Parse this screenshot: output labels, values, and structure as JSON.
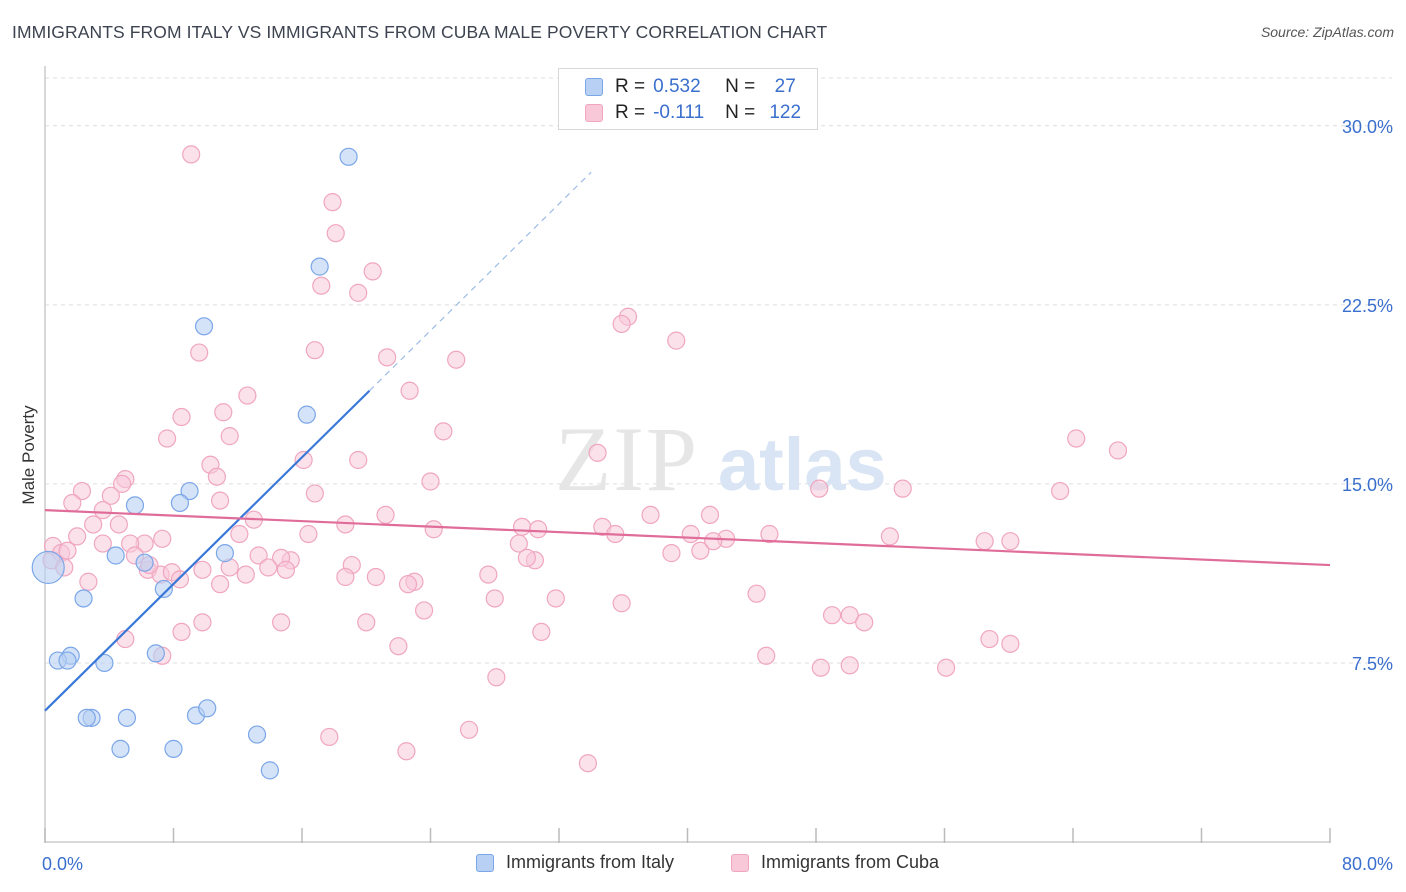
{
  "title": "IMMIGRANTS FROM ITALY VS IMMIGRANTS FROM CUBA MALE POVERTY CORRELATION CHART",
  "source": "Source: ZipAtlas.com",
  "watermark": {
    "zip": "ZIP",
    "atlas": "atlas"
  },
  "stats": [
    {
      "r_label": "R =",
      "r_value": "0.532",
      "n_label": "N =",
      "n_value": "27",
      "color": "#7ba6e8",
      "fill": "#b8d0f4"
    },
    {
      "r_label": "R =",
      "r_value": "-0.111",
      "n_label": "N =",
      "n_value": "122",
      "color": "#f0a6c0",
      "fill": "#f8c8d8"
    }
  ],
  "legend": [
    {
      "label": "Immigrants from Italy",
      "color": "#7ba6e8",
      "fill": "#b8d0f4"
    },
    {
      "label": "Immigrants from Cuba",
      "color": "#f0a6c0",
      "fill": "#f8c8d8"
    }
  ],
  "chart_data": {
    "type": "scatter",
    "title": "IMMIGRANTS FROM ITALY VS IMMIGRANTS FROM CUBA MALE POVERTY CORRELATION CHART",
    "xlabel": "",
    "ylabel": "Male Poverty",
    "xlim": [
      0,
      80
    ],
    "ylim": [
      0,
      32
    ],
    "x_tick_labels": [
      "0.0%",
      "80.0%"
    ],
    "y_ticks": [
      7.5,
      15.0,
      22.5,
      30.0
    ],
    "y_tick_labels": [
      "7.5%",
      "15.0%",
      "22.5%",
      "30.0%"
    ],
    "series": [
      {
        "name": "Immigrants from Italy",
        "color": "#3a78d8",
        "fill": "#b8d0f4",
        "stroke": "#7ba6e8",
        "trendline": {
          "x0": 0,
          "y0": 5.5,
          "x1": 20.2,
          "y1": 18.9,
          "dash_x1": 34.0
        },
        "points": [
          [
            0.2,
            11.5
          ],
          [
            18.9,
            28.7
          ],
          [
            17.1,
            24.1
          ],
          [
            9.9,
            21.6
          ],
          [
            16.3,
            17.9
          ],
          [
            9.0,
            14.7
          ],
          [
            8.4,
            14.2
          ],
          [
            5.6,
            14.1
          ],
          [
            11.2,
            12.1
          ],
          [
            4.4,
            12.0
          ],
          [
            6.2,
            11.7
          ],
          [
            7.4,
            10.6
          ],
          [
            2.4,
            10.2
          ],
          [
            1.6,
            7.8
          ],
          [
            0.8,
            7.6
          ],
          [
            1.4,
            7.6
          ],
          [
            3.7,
            7.5
          ],
          [
            6.9,
            7.9
          ],
          [
            2.9,
            5.2
          ],
          [
            5.1,
            5.2
          ],
          [
            9.4,
            5.3
          ],
          [
            10.1,
            5.6
          ],
          [
            13.2,
            4.5
          ],
          [
            4.7,
            3.9
          ],
          [
            8.0,
            3.9
          ],
          [
            14.0,
            3.0
          ],
          [
            2.6,
            5.2
          ]
        ]
      },
      {
        "name": "Immigrants from Cuba",
        "color": "#e06c9a",
        "fill": "#f8c8d8",
        "stroke": "#f0a6c0",
        "trendline": {
          "x0": 0,
          "y0": 13.9,
          "x1": 80,
          "y1": 11.6
        },
        "points": [
          [
            9.1,
            28.8
          ],
          [
            17.9,
            26.8
          ],
          [
            18.1,
            25.5
          ],
          [
            20.4,
            23.9
          ],
          [
            17.2,
            23.3
          ],
          [
            19.5,
            23.0
          ],
          [
            36.3,
            22.0
          ],
          [
            35.9,
            21.7
          ],
          [
            39.3,
            21.0
          ],
          [
            9.6,
            20.5
          ],
          [
            16.8,
            20.6
          ],
          [
            21.3,
            20.3
          ],
          [
            25.6,
            20.2
          ],
          [
            22.7,
            18.9
          ],
          [
            12.6,
            18.7
          ],
          [
            8.5,
            17.8
          ],
          [
            11.1,
            18.0
          ],
          [
            24.8,
            17.2
          ],
          [
            7.6,
            16.9
          ],
          [
            11.5,
            17.0
          ],
          [
            64.2,
            16.9
          ],
          [
            66.8,
            16.4
          ],
          [
            34.4,
            16.3
          ],
          [
            16.1,
            16.0
          ],
          [
            19.5,
            16.0
          ],
          [
            10.3,
            15.8
          ],
          [
            10.7,
            15.3
          ],
          [
            5.0,
            15.2
          ],
          [
            4.8,
            15.0
          ],
          [
            24.0,
            15.1
          ],
          [
            63.2,
            14.7
          ],
          [
            48.2,
            14.8
          ],
          [
            2.3,
            14.7
          ],
          [
            4.1,
            14.5
          ],
          [
            1.7,
            14.2
          ],
          [
            10.9,
            14.3
          ],
          [
            16.8,
            14.6
          ],
          [
            53.4,
            14.8
          ],
          [
            3.6,
            13.9
          ],
          [
            37.7,
            13.7
          ],
          [
            41.4,
            13.7
          ],
          [
            21.2,
            13.7
          ],
          [
            4.6,
            13.3
          ],
          [
            13.0,
            13.5
          ],
          [
            18.7,
            13.3
          ],
          [
            29.7,
            13.2
          ],
          [
            30.7,
            13.1
          ],
          [
            34.7,
            13.2
          ],
          [
            35.5,
            12.9
          ],
          [
            24.2,
            13.1
          ],
          [
            0.5,
            12.4
          ],
          [
            1.0,
            12.1
          ],
          [
            2.0,
            12.8
          ],
          [
            3.0,
            13.3
          ],
          [
            3.6,
            12.5
          ],
          [
            7.3,
            12.7
          ],
          [
            6.2,
            12.5
          ],
          [
            5.3,
            12.5
          ],
          [
            12.1,
            12.9
          ],
          [
            16.4,
            12.9
          ],
          [
            40.2,
            12.9
          ],
          [
            42.4,
            12.7
          ],
          [
            45.1,
            12.9
          ],
          [
            52.6,
            12.8
          ],
          [
            58.5,
            12.6
          ],
          [
            60.1,
            12.6
          ],
          [
            1.4,
            12.2
          ],
          [
            5.6,
            12.0
          ],
          [
            13.3,
            12.0
          ],
          [
            15.3,
            11.8
          ],
          [
            14.7,
            11.9
          ],
          [
            29.5,
            12.5
          ],
          [
            30.5,
            11.8
          ],
          [
            30.0,
            11.9
          ],
          [
            39.0,
            12.1
          ],
          [
            40.8,
            12.2
          ],
          [
            41.6,
            12.6
          ],
          [
            0.4,
            11.8
          ],
          [
            1.2,
            11.5
          ],
          [
            6.4,
            11.4
          ],
          [
            7.2,
            11.2
          ],
          [
            7.9,
            11.3
          ],
          [
            9.8,
            11.4
          ],
          [
            11.5,
            11.5
          ],
          [
            12.5,
            11.2
          ],
          [
            13.9,
            11.5
          ],
          [
            15.0,
            11.4
          ],
          [
            19.1,
            11.6
          ],
          [
            18.7,
            11.1
          ],
          [
            20.6,
            11.1
          ],
          [
            27.6,
            11.2
          ],
          [
            2.7,
            10.9
          ],
          [
            6.5,
            11.6
          ],
          [
            8.4,
            11.0
          ],
          [
            10.9,
            10.8
          ],
          [
            23.0,
            10.9
          ],
          [
            22.6,
            10.8
          ],
          [
            28.0,
            10.2
          ],
          [
            31.8,
            10.2
          ],
          [
            44.3,
            10.4
          ],
          [
            23.6,
            9.7
          ],
          [
            35.9,
            10.0
          ],
          [
            9.8,
            9.2
          ],
          [
            14.7,
            9.2
          ],
          [
            20.0,
            9.2
          ],
          [
            49.0,
            9.5
          ],
          [
            51.0,
            9.2
          ],
          [
            30.9,
            8.8
          ],
          [
            5.0,
            8.5
          ],
          [
            7.3,
            7.8
          ],
          [
            8.5,
            8.8
          ],
          [
            22.0,
            8.2
          ],
          [
            50.1,
            9.5
          ],
          [
            58.8,
            8.5
          ],
          [
            60.1,
            8.3
          ],
          [
            44.9,
            7.8
          ],
          [
            48.3,
            7.3
          ],
          [
            50.1,
            7.4
          ],
          [
            56.1,
            7.3
          ],
          [
            28.1,
            6.9
          ],
          [
            26.4,
            4.7
          ],
          [
            17.7,
            4.4
          ],
          [
            22.5,
            3.8
          ],
          [
            33.8,
            3.3
          ]
        ]
      }
    ]
  }
}
